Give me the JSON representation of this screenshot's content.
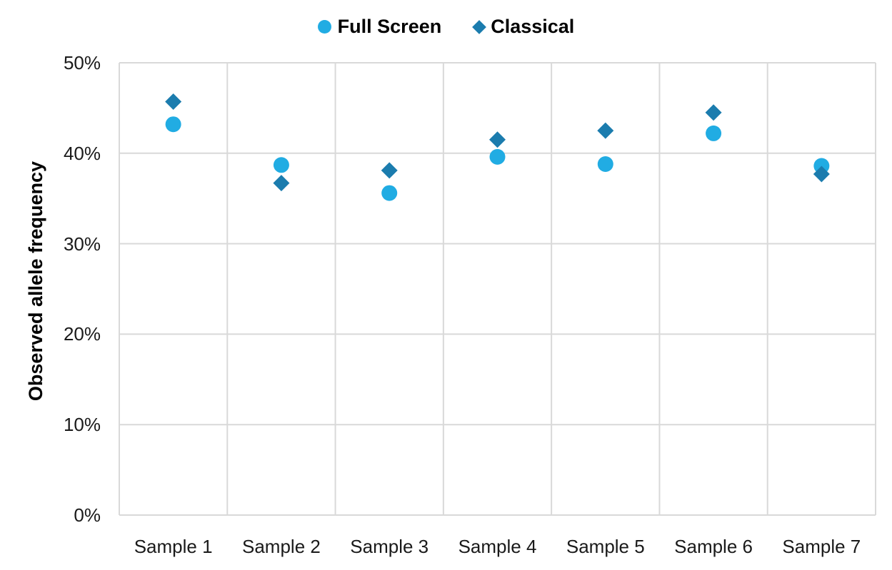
{
  "legend": {
    "position": "top"
  },
  "y_axis": {
    "title": "Observed allele frequency"
  },
  "chart_data": {
    "type": "scatter",
    "title": "",
    "xlabel": "",
    "ylabel": "Observed allele frequency",
    "categories": [
      "Sample 1",
      "Sample 2",
      "Sample 3",
      "Sample 4",
      "Sample 5",
      "Sample 6",
      "Sample 7"
    ],
    "series": [
      {
        "name": "Full Screen",
        "marker": "circle",
        "color": "#21ACE3",
        "values": [
          43.2,
          38.7,
          35.6,
          39.6,
          38.8,
          42.2,
          38.6
        ]
      },
      {
        "name": "Classical",
        "marker": "diamond",
        "color": "#1B7CAE",
        "values": [
          45.7,
          36.7,
          38.1,
          41.5,
          42.5,
          44.5,
          37.7
        ]
      }
    ],
    "ylim": [
      0,
      50
    ],
    "yticks": {
      "values": [
        0,
        10,
        20,
        30,
        40,
        50
      ],
      "labels": [
        "0%",
        "10%",
        "20%",
        "30%",
        "40%",
        "50%"
      ]
    },
    "grid": true,
    "grid_color": "#D9D9D9",
    "legend_position": "top-center"
  }
}
